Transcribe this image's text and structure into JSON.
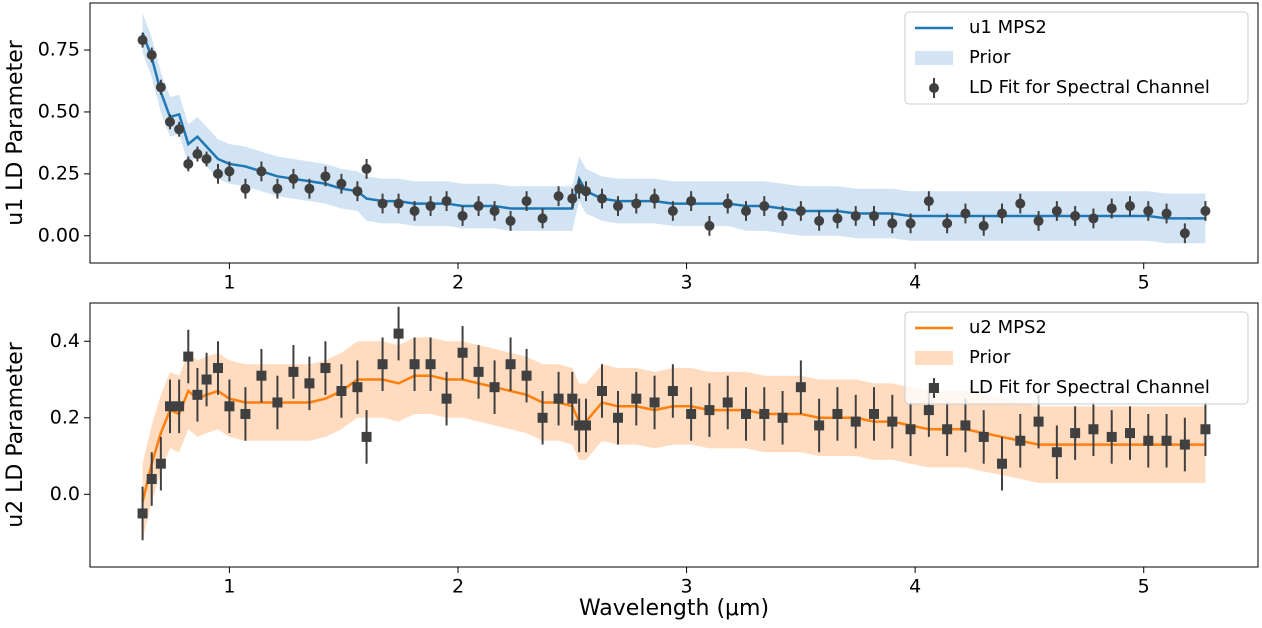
{
  "chart_data": [
    {
      "type": "errorbar",
      "ylabel": "u1 LD Parameter",
      "x": [
        0.62,
        0.66,
        0.7,
        0.74,
        0.78,
        0.82,
        0.86,
        0.9,
        0.95,
        1.0,
        1.07,
        1.14,
        1.21,
        1.28,
        1.35,
        1.42,
        1.49,
        1.56,
        1.6,
        1.67,
        1.74,
        1.81,
        1.88,
        1.95,
        2.02,
        2.09,
        2.16,
        2.23,
        2.3,
        2.37,
        2.44,
        2.5,
        2.53,
        2.56,
        2.63,
        2.7,
        2.78,
        2.86,
        2.94,
        3.02,
        3.1,
        3.18,
        3.26,
        3.34,
        3.42,
        3.5,
        3.58,
        3.66,
        3.74,
        3.82,
        3.9,
        3.98,
        4.06,
        4.14,
        4.22,
        4.3,
        4.38,
        4.46,
        4.54,
        4.62,
        4.7,
        4.78,
        4.86,
        4.94,
        5.02,
        5.1,
        5.18,
        5.27
      ],
      "xlim": [
        0.39,
        5.5
      ],
      "xticks": [
        1,
        2,
        3,
        4,
        5
      ],
      "ylim": [
        -0.11,
        0.94
      ],
      "yticks": [
        {
          "value": 0,
          "label": "0.00"
        },
        {
          "value": 0.25,
          "label": "0.25"
        },
        {
          "value": 0.5,
          "label": "0.50"
        },
        {
          "value": 0.75,
          "label": "0.75"
        }
      ],
      "legend": "upper right",
      "series": [
        {
          "name": "u1 MPS2",
          "style": "line",
          "color": "#1f77b4",
          "values": [
            0.82,
            0.72,
            0.58,
            0.48,
            0.49,
            0.37,
            0.4,
            0.36,
            0.31,
            0.29,
            0.28,
            0.26,
            0.24,
            0.23,
            0.22,
            0.21,
            0.19,
            0.18,
            0.15,
            0.14,
            0.14,
            0.13,
            0.13,
            0.13,
            0.12,
            0.12,
            0.12,
            0.11,
            0.11,
            0.11,
            0.11,
            0.11,
            0.23,
            0.18,
            0.15,
            0.14,
            0.14,
            0.14,
            0.13,
            0.13,
            0.13,
            0.13,
            0.12,
            0.12,
            0.11,
            0.1,
            0.1,
            0.1,
            0.09,
            0.09,
            0.09,
            0.08,
            0.08,
            0.08,
            0.08,
            0.08,
            0.08,
            0.08,
            0.08,
            0.08,
            0.08,
            0.08,
            0.08,
            0.08,
            0.08,
            0.07,
            0.07,
            0.07
          ]
        },
        {
          "name": "Prior",
          "style": "band",
          "color": "#d2e3f3",
          "lower": [
            0.74,
            0.64,
            0.5,
            0.4,
            0.41,
            0.29,
            0.32,
            0.28,
            0.23,
            0.21,
            0.2,
            0.18,
            0.16,
            0.15,
            0.14,
            0.13,
            0.11,
            0.1,
            0.06,
            0.05,
            0.05,
            0.04,
            0.04,
            0.04,
            0.03,
            0.03,
            0.03,
            0.02,
            0.02,
            0.02,
            0.02,
            0.02,
            0.14,
            0.09,
            0.06,
            0.05,
            0.05,
            0.05,
            0.04,
            0.04,
            0.04,
            0.04,
            0.02,
            0.02,
            0.01,
            0.0,
            0.0,
            0.0,
            -0.01,
            -0.01,
            -0.01,
            -0.02,
            -0.02,
            -0.02,
            -0.02,
            -0.02,
            -0.02,
            -0.02,
            -0.02,
            -0.02,
            -0.02,
            -0.02,
            -0.02,
            -0.02,
            -0.02,
            -0.03,
            -0.03,
            -0.03
          ],
          "upper": [
            0.9,
            0.8,
            0.66,
            0.56,
            0.57,
            0.45,
            0.48,
            0.44,
            0.39,
            0.37,
            0.36,
            0.34,
            0.32,
            0.31,
            0.3,
            0.29,
            0.27,
            0.26,
            0.24,
            0.23,
            0.23,
            0.22,
            0.22,
            0.22,
            0.21,
            0.21,
            0.21,
            0.2,
            0.2,
            0.2,
            0.2,
            0.2,
            0.32,
            0.27,
            0.24,
            0.23,
            0.23,
            0.23,
            0.22,
            0.22,
            0.22,
            0.22,
            0.22,
            0.22,
            0.21,
            0.2,
            0.2,
            0.2,
            0.19,
            0.19,
            0.19,
            0.18,
            0.18,
            0.18,
            0.18,
            0.18,
            0.18,
            0.18,
            0.18,
            0.18,
            0.18,
            0.18,
            0.18,
            0.18,
            0.18,
            0.17,
            0.17,
            0.17
          ]
        },
        {
          "name": "LD Fit for Spectral Channel",
          "style": "errorbar",
          "marker": "circle",
          "color": "#404040",
          "values": [
            0.79,
            0.73,
            0.6,
            0.46,
            0.43,
            0.29,
            0.33,
            0.31,
            0.25,
            0.26,
            0.19,
            0.26,
            0.19,
            0.23,
            0.19,
            0.24,
            0.21,
            0.18,
            0.27,
            0.13,
            0.13,
            0.1,
            0.12,
            0.14,
            0.08,
            0.12,
            0.1,
            0.06,
            0.14,
            0.07,
            0.16,
            0.15,
            0.19,
            0.18,
            0.15,
            0.12,
            0.13,
            0.15,
            0.1,
            0.14,
            0.04,
            0.13,
            0.1,
            0.12,
            0.08,
            0.1,
            0.06,
            0.07,
            0.08,
            0.08,
            0.05,
            0.05,
            0.14,
            0.05,
            0.09,
            0.04,
            0.09,
            0.13,
            0.06,
            0.1,
            0.08,
            0.07,
            0.11,
            0.12,
            0.1,
            0.09,
            0.01,
            0.1
          ],
          "errors": [
            0.03,
            0.03,
            0.03,
            0.03,
            0.03,
            0.03,
            0.03,
            0.03,
            0.04,
            0.04,
            0.04,
            0.04,
            0.04,
            0.04,
            0.04,
            0.04,
            0.04,
            0.04,
            0.04,
            0.04,
            0.04,
            0.04,
            0.04,
            0.04,
            0.04,
            0.04,
            0.04,
            0.04,
            0.04,
            0.04,
            0.04,
            0.04,
            0.04,
            0.04,
            0.04,
            0.04,
            0.04,
            0.04,
            0.04,
            0.04,
            0.04,
            0.04,
            0.04,
            0.04,
            0.04,
            0.04,
            0.04,
            0.04,
            0.04,
            0.04,
            0.04,
            0.04,
            0.04,
            0.04,
            0.04,
            0.04,
            0.04,
            0.04,
            0.04,
            0.04,
            0.04,
            0.04,
            0.04,
            0.04,
            0.04,
            0.04,
            0.04,
            0.04
          ]
        }
      ]
    },
    {
      "type": "errorbar",
      "ylabel": "u2 LD Parameter",
      "xlabel": "Wavelength (μm)",
      "x": [
        0.62,
        0.66,
        0.7,
        0.74,
        0.78,
        0.82,
        0.86,
        0.9,
        0.95,
        1.0,
        1.07,
        1.14,
        1.21,
        1.28,
        1.35,
        1.42,
        1.49,
        1.56,
        1.6,
        1.67,
        1.74,
        1.81,
        1.88,
        1.95,
        2.02,
        2.09,
        2.16,
        2.23,
        2.3,
        2.37,
        2.44,
        2.5,
        2.53,
        2.56,
        2.63,
        2.7,
        2.78,
        2.86,
        2.94,
        3.02,
        3.1,
        3.18,
        3.26,
        3.34,
        3.42,
        3.5,
        3.58,
        3.66,
        3.74,
        3.82,
        3.9,
        3.98,
        4.06,
        4.14,
        4.22,
        4.3,
        4.38,
        4.46,
        4.54,
        4.62,
        4.7,
        4.78,
        4.86,
        4.94,
        5.02,
        5.1,
        5.18,
        5.27
      ],
      "xlim": [
        0.39,
        5.5
      ],
      "xticks": [
        1,
        2,
        3,
        4,
        5
      ],
      "ylim": [
        -0.19,
        0.5
      ],
      "yticks": [
        {
          "value": 0,
          "label": "0.0"
        },
        {
          "value": 0.2,
          "label": "0.2"
        },
        {
          "value": 0.4,
          "label": "0.4"
        }
      ],
      "legend": "upper right",
      "series": [
        {
          "name": "u2 MPS2",
          "style": "line",
          "color": "#ff7f0e",
          "values": [
            -0.02,
            0.08,
            0.16,
            0.22,
            0.21,
            0.27,
            0.25,
            0.26,
            0.27,
            0.25,
            0.24,
            0.24,
            0.24,
            0.24,
            0.24,
            0.25,
            0.27,
            0.3,
            0.3,
            0.3,
            0.29,
            0.31,
            0.31,
            0.3,
            0.3,
            0.29,
            0.28,
            0.27,
            0.26,
            0.24,
            0.24,
            0.23,
            0.19,
            0.19,
            0.24,
            0.23,
            0.23,
            0.22,
            0.23,
            0.23,
            0.22,
            0.22,
            0.22,
            0.21,
            0.21,
            0.21,
            0.2,
            0.2,
            0.2,
            0.19,
            0.19,
            0.18,
            0.17,
            0.17,
            0.17,
            0.16,
            0.15,
            0.14,
            0.13,
            0.13,
            0.13,
            0.13,
            0.13,
            0.13,
            0.13,
            0.13,
            0.13,
            0.13
          ]
        },
        {
          "name": "Prior",
          "style": "band",
          "color": "#ffdcbf",
          "lower": [
            -0.12,
            -0.02,
            0.06,
            0.12,
            0.11,
            0.17,
            0.15,
            0.16,
            0.17,
            0.15,
            0.14,
            0.14,
            0.14,
            0.14,
            0.14,
            0.15,
            0.17,
            0.2,
            0.2,
            0.2,
            0.19,
            0.21,
            0.21,
            0.2,
            0.2,
            0.19,
            0.18,
            0.17,
            0.16,
            0.14,
            0.14,
            0.13,
            0.09,
            0.09,
            0.14,
            0.13,
            0.13,
            0.12,
            0.13,
            0.13,
            0.12,
            0.12,
            0.12,
            0.11,
            0.11,
            0.11,
            0.1,
            0.1,
            0.1,
            0.09,
            0.09,
            0.08,
            0.07,
            0.07,
            0.07,
            0.06,
            0.05,
            0.04,
            0.03,
            0.03,
            0.03,
            0.03,
            0.03,
            0.03,
            0.03,
            0.03,
            0.03,
            0.03
          ],
          "upper": [
            0.08,
            0.18,
            0.26,
            0.32,
            0.31,
            0.37,
            0.35,
            0.36,
            0.37,
            0.35,
            0.34,
            0.34,
            0.34,
            0.34,
            0.34,
            0.35,
            0.37,
            0.4,
            0.4,
            0.4,
            0.39,
            0.41,
            0.41,
            0.4,
            0.4,
            0.39,
            0.38,
            0.37,
            0.36,
            0.34,
            0.34,
            0.33,
            0.29,
            0.29,
            0.34,
            0.33,
            0.33,
            0.32,
            0.33,
            0.33,
            0.32,
            0.32,
            0.32,
            0.31,
            0.31,
            0.31,
            0.3,
            0.3,
            0.3,
            0.29,
            0.29,
            0.28,
            0.27,
            0.27,
            0.27,
            0.26,
            0.25,
            0.24,
            0.23,
            0.23,
            0.23,
            0.23,
            0.23,
            0.23,
            0.23,
            0.23,
            0.23,
            0.23
          ]
        },
        {
          "name": "LD Fit for Spectral Channel",
          "style": "errorbar",
          "marker": "square",
          "color": "#404040",
          "values": [
            -0.05,
            0.04,
            0.08,
            0.23,
            0.23,
            0.36,
            0.26,
            0.3,
            0.33,
            0.23,
            0.21,
            0.31,
            0.24,
            0.32,
            0.29,
            0.33,
            0.27,
            0.28,
            0.15,
            0.34,
            0.42,
            0.34,
            0.34,
            0.25,
            0.37,
            0.32,
            0.28,
            0.34,
            0.31,
            0.2,
            0.25,
            0.25,
            0.18,
            0.18,
            0.27,
            0.2,
            0.25,
            0.24,
            0.27,
            0.21,
            0.22,
            0.24,
            0.21,
            0.21,
            0.2,
            0.28,
            0.18,
            0.21,
            0.19,
            0.21,
            0.19,
            0.17,
            0.22,
            0.17,
            0.18,
            0.15,
            0.08,
            0.14,
            0.19,
            0.11,
            0.16,
            0.17,
            0.15,
            0.16,
            0.14,
            0.14,
            0.13,
            0.17
          ],
          "errors": [
            0.07,
            0.07,
            0.07,
            0.07,
            0.07,
            0.07,
            0.07,
            0.07,
            0.07,
            0.07,
            0.07,
            0.07,
            0.07,
            0.07,
            0.07,
            0.07,
            0.07,
            0.07,
            0.07,
            0.07,
            0.07,
            0.07,
            0.07,
            0.07,
            0.07,
            0.07,
            0.07,
            0.07,
            0.07,
            0.07,
            0.07,
            0.07,
            0.07,
            0.07,
            0.07,
            0.07,
            0.07,
            0.07,
            0.07,
            0.07,
            0.07,
            0.07,
            0.07,
            0.07,
            0.07,
            0.07,
            0.07,
            0.07,
            0.07,
            0.07,
            0.07,
            0.07,
            0.07,
            0.07,
            0.07,
            0.07,
            0.07,
            0.07,
            0.07,
            0.07,
            0.07,
            0.07,
            0.07,
            0.07,
            0.07,
            0.07,
            0.07,
            0.07
          ]
        }
      ]
    }
  ]
}
